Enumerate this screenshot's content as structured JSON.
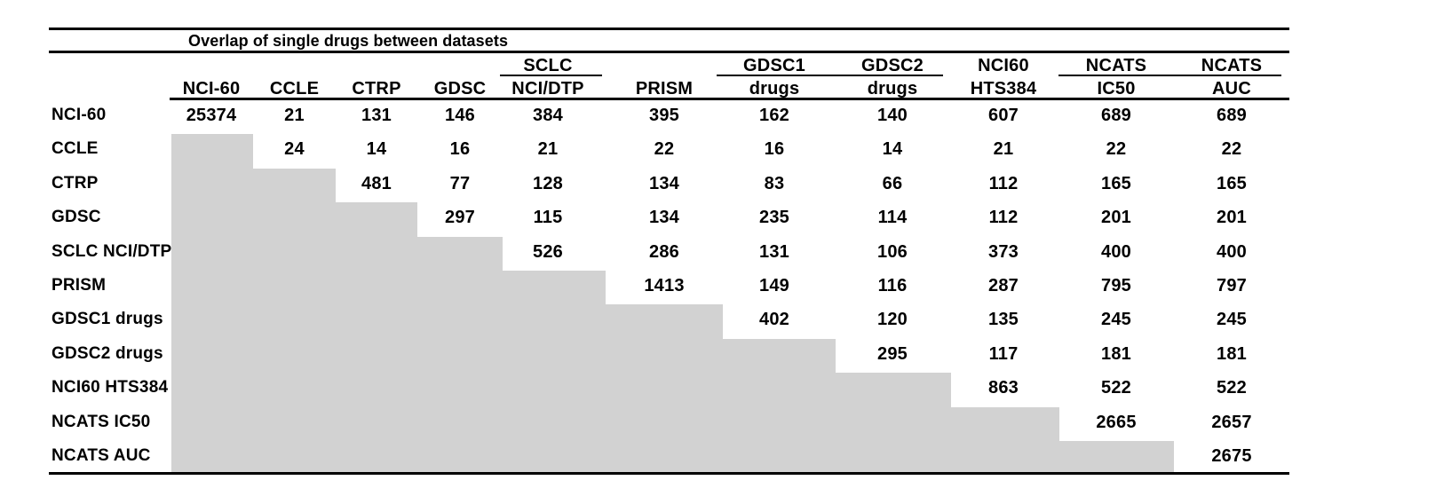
{
  "title": "Overlap of single drugs between datasets",
  "colors": {
    "background": "#ffffff",
    "text": "#000000",
    "rule": "#000000",
    "shaded_lower_triangle": "#d2d2d2"
  },
  "table": {
    "column_groups": [
      {
        "col": 4,
        "label": "SCLC"
      },
      {
        "col": 6,
        "label": "GDSC1"
      },
      {
        "col": 7,
        "label": "GDSC2"
      },
      {
        "col": 8,
        "label": "NCI60"
      },
      {
        "col": 9,
        "label": "NCATS"
      },
      {
        "col": 10,
        "label": "NCATS"
      }
    ],
    "columns": [
      "NCI-60",
      "CCLE",
      "CTRP",
      "GDSC",
      "NCI/DTP",
      "PRISM",
      "drugs",
      "drugs",
      "HTS384",
      "IC50",
      "AUC"
    ],
    "full_column_names": [
      "NCI-60",
      "CCLE",
      "CTRP",
      "GDSC",
      "SCLC NCI/DTP",
      "PRISM",
      "GDSC1 drugs",
      "GDSC2 drugs",
      "NCI60 HTS384",
      "NCATS IC50",
      "NCATS AUC"
    ],
    "rows": [
      {
        "label": "NCI-60",
        "values": [
          25374,
          21,
          131,
          146,
          384,
          395,
          162,
          140,
          607,
          689,
          689
        ]
      },
      {
        "label": "CCLE",
        "values": [
          null,
          24,
          14,
          16,
          21,
          22,
          16,
          14,
          21,
          22,
          22
        ]
      },
      {
        "label": "CTRP",
        "values": [
          null,
          null,
          481,
          77,
          128,
          134,
          83,
          66,
          112,
          165,
          165
        ]
      },
      {
        "label": "GDSC",
        "values": [
          null,
          null,
          null,
          297,
          115,
          134,
          235,
          114,
          112,
          201,
          201
        ]
      },
      {
        "label": "SCLC NCI/DTP",
        "values": [
          null,
          null,
          null,
          null,
          526,
          286,
          131,
          106,
          373,
          400,
          400
        ]
      },
      {
        "label": "PRISM",
        "values": [
          null,
          null,
          null,
          null,
          null,
          1413,
          149,
          116,
          287,
          795,
          797
        ]
      },
      {
        "label": "GDSC1 drugs",
        "values": [
          null,
          null,
          null,
          null,
          null,
          null,
          402,
          120,
          135,
          245,
          245
        ]
      },
      {
        "label": "GDSC2 drugs",
        "values": [
          null,
          null,
          null,
          null,
          null,
          null,
          null,
          295,
          117,
          181,
          181
        ]
      },
      {
        "label": "NCI60 HTS384",
        "values": [
          null,
          null,
          null,
          null,
          null,
          null,
          null,
          null,
          863,
          522,
          522
        ]
      },
      {
        "label": "NCATS IC50",
        "values": [
          null,
          null,
          null,
          null,
          null,
          null,
          null,
          null,
          null,
          2665,
          2657
        ]
      },
      {
        "label": "NCATS AUC",
        "values": [
          null,
          null,
          null,
          null,
          null,
          null,
          null,
          null,
          null,
          null,
          2675
        ]
      }
    ]
  }
}
